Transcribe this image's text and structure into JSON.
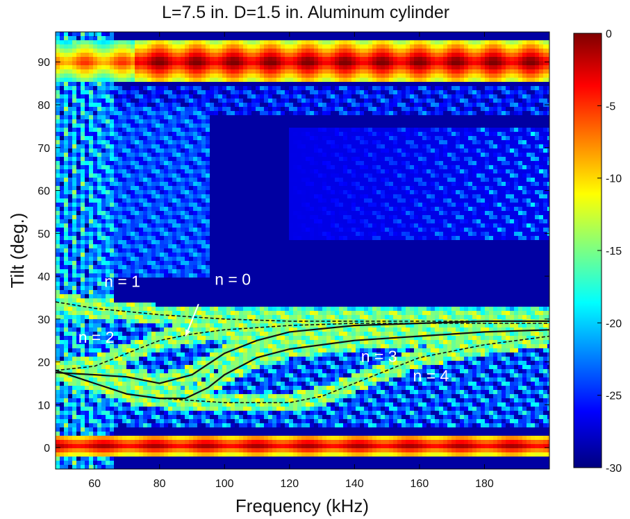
{
  "chart_data": {
    "type": "heatmap",
    "title": "L=7.5 in. D=1.5 in. Aluminum cylinder",
    "xlabel": "Frequency (kHz)",
    "ylabel": "Tilt (deg.)",
    "xlim": [
      48,
      200
    ],
    "ylim": [
      -5,
      97
    ],
    "xticks": [
      60,
      80,
      100,
      120,
      140,
      160,
      180
    ],
    "yticks": [
      0,
      10,
      20,
      30,
      40,
      50,
      60,
      70,
      80,
      90
    ],
    "colorbar": {
      "range": [
        -30,
        0
      ],
      "ticks": [
        0,
        -5,
        -10,
        -15,
        -20,
        -25,
        -30
      ],
      "colormap": "jet"
    },
    "series": [
      {
        "name": "n = 0",
        "style": "solid",
        "points": [
          [
            48,
            17.5
          ],
          [
            60,
            17
          ],
          [
            70,
            16.5
          ],
          [
            80,
            15
          ],
          [
            90,
            17
          ],
          [
            100,
            22
          ],
          [
            110,
            25
          ],
          [
            120,
            27
          ],
          [
            140,
            28.5
          ],
          [
            160,
            29
          ],
          [
            180,
            29.5
          ],
          [
            200,
            29.5
          ]
        ]
      },
      {
        "name": "n = 1",
        "style": "dashed",
        "points": [
          [
            48,
            34
          ],
          [
            60,
            32.5
          ],
          [
            80,
            31
          ],
          [
            100,
            30
          ],
          [
            120,
            29.5
          ],
          [
            140,
            29.5
          ],
          [
            160,
            29.5
          ],
          [
            180,
            29.5
          ],
          [
            200,
            29.5
          ]
        ]
      },
      {
        "name": "n = 2",
        "style": "dashed",
        "points": [
          [
            48,
            18
          ],
          [
            60,
            19
          ],
          [
            70,
            22
          ],
          [
            80,
            25
          ],
          [
            90,
            26.5
          ],
          [
            100,
            27.5
          ],
          [
            120,
            28.5
          ],
          [
            140,
            29
          ],
          [
            160,
            29
          ],
          [
            180,
            29
          ],
          [
            200,
            29
          ]
        ]
      },
      {
        "name": "n = 3",
        "style": "solid",
        "points": [
          [
            48,
            18
          ],
          [
            60,
            15
          ],
          [
            70,
            12.5
          ],
          [
            80,
            11.5
          ],
          [
            88,
            11.5
          ],
          [
            95,
            14
          ],
          [
            100,
            17
          ],
          [
            110,
            21
          ],
          [
            120,
            23
          ],
          [
            140,
            25
          ],
          [
            160,
            26
          ],
          [
            180,
            27
          ],
          [
            200,
            27.5
          ]
        ]
      },
      {
        "name": "n = 4",
        "style": "dashed",
        "points": [
          [
            48,
            18
          ],
          [
            60,
            15
          ],
          [
            70,
            12.5
          ],
          [
            80,
            11.5
          ],
          [
            90,
            11
          ],
          [
            100,
            10.5
          ],
          [
            120,
            10.5
          ],
          [
            130,
            12
          ],
          [
            140,
            15
          ],
          [
            150,
            18
          ],
          [
            160,
            21
          ],
          [
            180,
            24
          ],
          [
            200,
            26
          ]
        ]
      }
    ],
    "annotations": [
      {
        "text": "n = 1",
        "x": 63,
        "y": 37.5
      },
      {
        "text": "n = 0",
        "x": 97,
        "y": 38
      },
      {
        "text": "n = 2",
        "x": 55,
        "y": 24.5
      },
      {
        "text": "n = 3",
        "x": 142,
        "y": 20
      },
      {
        "text": "n = 4",
        "x": 158,
        "y": 15.5
      }
    ],
    "arrow": {
      "from": [
        92,
        33.5
      ],
      "to": [
        88,
        26
      ]
    }
  }
}
